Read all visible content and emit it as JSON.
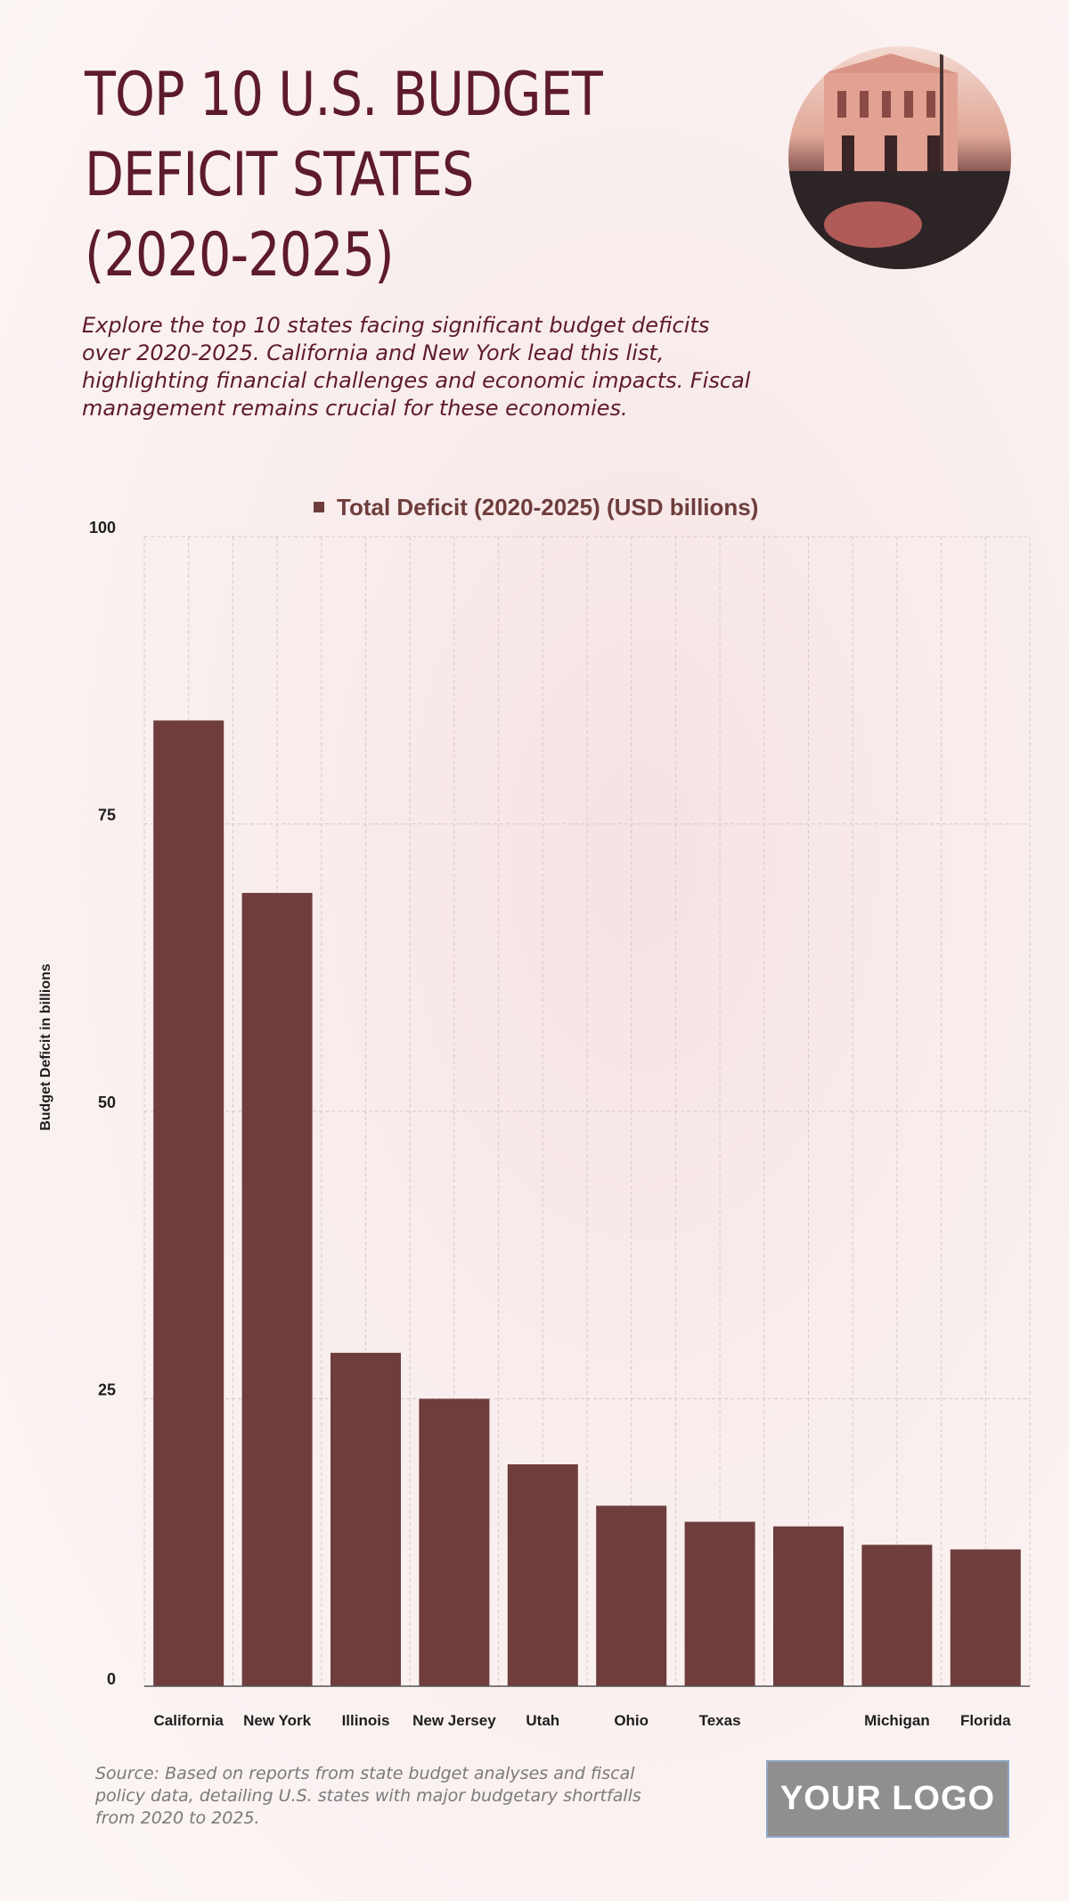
{
  "header": {
    "title_lines": [
      "TOP 10 U.S.  BUDGET",
      "DEFICIT STATES",
      "(2020-2025)"
    ],
    "description_lines": [
      "Explore the top 10 states facing significant budget deficits",
      "over 2020-2025. California and New York lead this list,",
      "highlighting financial challenges and economic impacts. Fiscal",
      "management remains crucial for these economies."
    ]
  },
  "footer": {
    "source_lines": [
      "Source: Based on reports from state budget analyses and fiscal",
      "policy data, detailing U.S. states with major budgetary shortfalls",
      "from 2020 to 2025."
    ],
    "logo_text": "YOUR LOGO"
  },
  "colors": {
    "bar": "#6e3d3c",
    "title": "#5e1a2e",
    "grid": "#d9c9c9"
  },
  "chart_data": {
    "type": "bar",
    "categories": [
      "California",
      "New York",
      "Illinois",
      "New Jersey",
      "Utah",
      "Ohio",
      "Texas",
      "",
      "Michigan",
      "Florida"
    ],
    "series": [
      {
        "name": "Total Deficit (2020-2025) (USD billions)",
        "values": [
          84,
          69,
          29,
          25,
          19.3,
          15.7,
          14.3,
          13.9,
          12.3,
          11.9
        ]
      }
    ],
    "ylabel": "Budget Deficit in billions",
    "xlabel": "",
    "ylim": [
      0,
      100
    ],
    "yticks": [
      0,
      25,
      50,
      75,
      100
    ],
    "grid": true,
    "legend": "top-center"
  }
}
